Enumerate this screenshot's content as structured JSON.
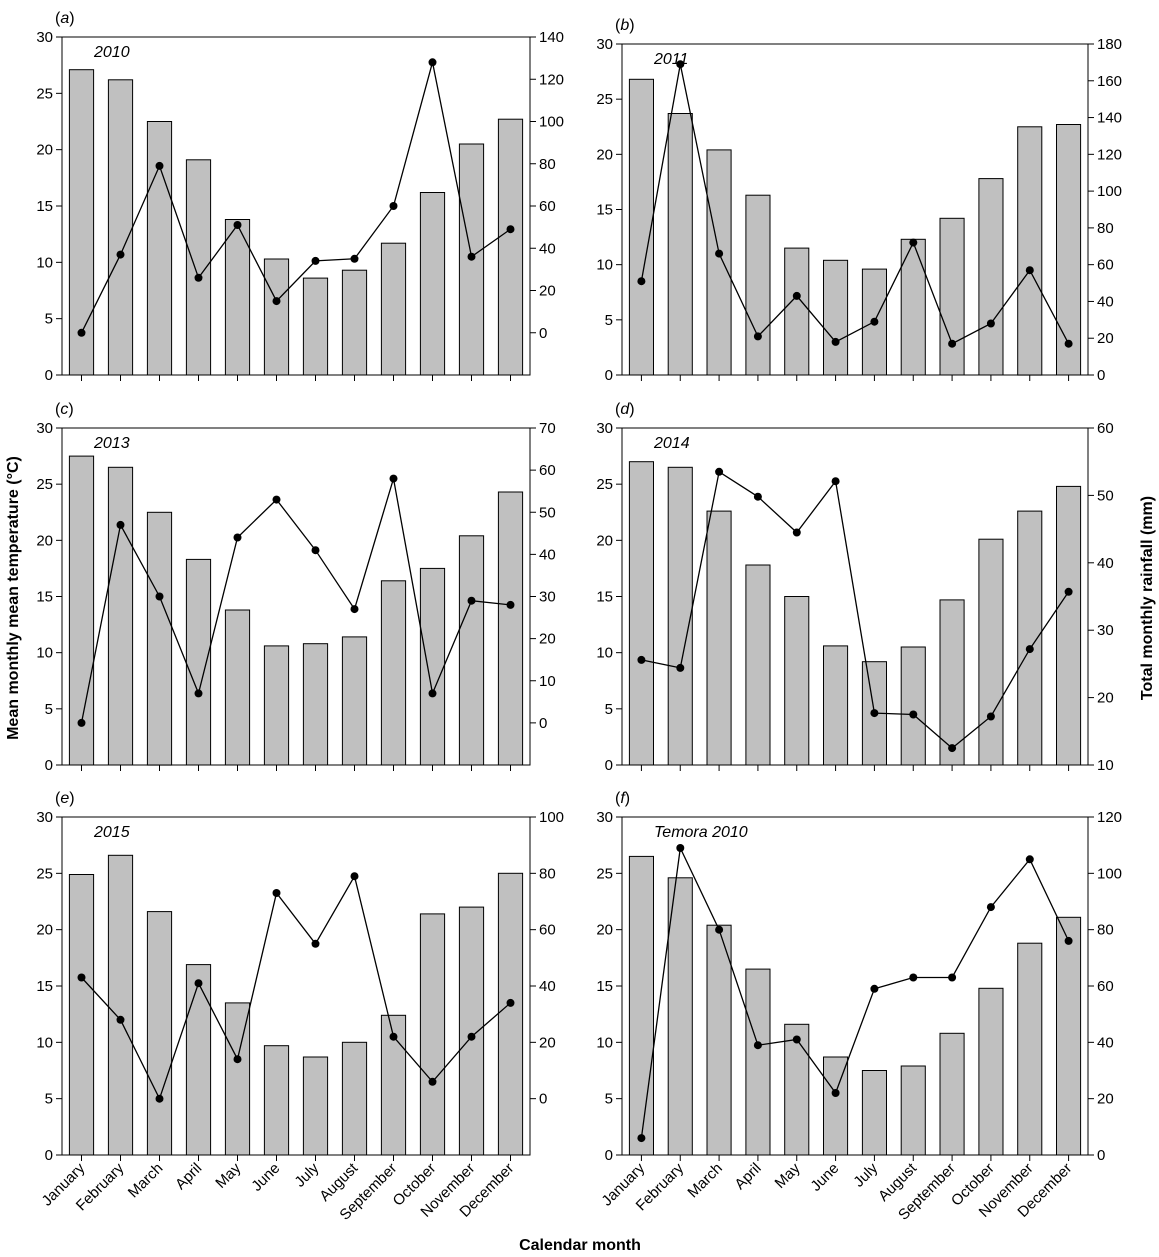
{
  "figure": {
    "ylabel_left": "Mean monthly mean temperature (°C)",
    "ylabel_right": "Total monthly rainfall (mm)",
    "xlabel": "Calendar month",
    "months": [
      "January",
      "February",
      "March",
      "April",
      "May",
      "June",
      "July",
      "August",
      "September",
      "October",
      "November",
      "December"
    ]
  },
  "colors": {
    "bar_fill": "#c0c0c0",
    "bar_stroke": "#000000",
    "line": "#000000",
    "marker": "#000000"
  },
  "chart_data": [
    {
      "type": "bar+line",
      "panel": "(a)",
      "title": "2010",
      "categories": [
        "January",
        "February",
        "March",
        "April",
        "May",
        "June",
        "July",
        "August",
        "September",
        "October",
        "November",
        "December"
      ],
      "series": [
        {
          "axis": "left",
          "type": "bar",
          "values": [
            27.1,
            26.2,
            22.5,
            19.1,
            13.8,
            10.3,
            8.6,
            9.3,
            11.7,
            16.2,
            20.5,
            22.7
          ]
        },
        {
          "axis": "right",
          "type": "line",
          "values": [
            0,
            37,
            79,
            26,
            51,
            15,
            34,
            35,
            60,
            128,
            36,
            49
          ]
        }
      ],
      "ylim_left": [
        0,
        30
      ],
      "yticks_left": [
        0,
        5,
        10,
        15,
        20,
        25,
        30
      ],
      "ylim_right": [
        -20,
        140
      ],
      "yticks_right": [
        0,
        20,
        40,
        60,
        80,
        100,
        120,
        140
      ]
    },
    {
      "type": "bar+line",
      "panel": "(b)",
      "title": "2011",
      "categories": [
        "January",
        "February",
        "March",
        "April",
        "May",
        "June",
        "July",
        "August",
        "September",
        "October",
        "November",
        "December"
      ],
      "series": [
        {
          "axis": "left",
          "type": "bar",
          "values": [
            26.8,
            23.7,
            20.4,
            16.3,
            11.5,
            10.4,
            9.6,
            12.3,
            14.2,
            17.8,
            22.5,
            22.7
          ]
        },
        {
          "axis": "right",
          "type": "line",
          "values": [
            51,
            169,
            66,
            21,
            43,
            18,
            29,
            72,
            17,
            28,
            57,
            17
          ]
        }
      ],
      "ylim_left": [
        0,
        30
      ],
      "yticks_left": [
        0,
        5,
        10,
        15,
        20,
        25,
        30
      ],
      "ylim_right": [
        0,
        180
      ],
      "yticks_right": [
        0,
        20,
        40,
        60,
        80,
        100,
        120,
        140,
        160,
        180
      ]
    },
    {
      "type": "bar+line",
      "panel": "(c)",
      "title": "2013",
      "categories": [
        "January",
        "February",
        "March",
        "April",
        "May",
        "June",
        "July",
        "August",
        "September",
        "October",
        "November",
        "December"
      ],
      "series": [
        {
          "axis": "left",
          "type": "bar",
          "values": [
            27.5,
            26.5,
            22.5,
            18.3,
            13.8,
            10.6,
            10.8,
            11.4,
            16.4,
            17.5,
            20.4,
            24.3
          ]
        },
        {
          "axis": "right",
          "type": "line",
          "values": [
            0,
            47,
            30,
            7,
            44,
            53,
            41,
            27,
            58,
            7,
            29,
            28
          ]
        }
      ],
      "ylim_left": [
        0,
        30
      ],
      "yticks_left": [
        0,
        5,
        10,
        15,
        20,
        25,
        30
      ],
      "ylim_right": [
        -10,
        70
      ],
      "yticks_right": [
        0,
        10,
        20,
        30,
        40,
        50,
        60,
        70
      ]
    },
    {
      "type": "bar+line",
      "panel": "(d)",
      "title": "2014",
      "categories": [
        "January",
        "February",
        "March",
        "April",
        "May",
        "June",
        "July",
        "August",
        "September",
        "October",
        "November",
        "December"
      ],
      "series": [
        {
          "axis": "left",
          "type": "bar",
          "values": [
            27.0,
            26.5,
            22.6,
            17.8,
            15.0,
            10.6,
            9.2,
            10.5,
            14.7,
            20.1,
            22.6,
            24.8
          ]
        },
        {
          "axis": "right",
          "type": "line",
          "values": [
            25.6,
            24.4,
            53.5,
            49.8,
            44.5,
            52.1,
            17.7,
            17.5,
            12.5,
            17.2,
            27.2,
            35.7
          ]
        }
      ],
      "ylim_left": [
        0,
        30
      ],
      "yticks_left": [
        0,
        5,
        10,
        15,
        20,
        25,
        30
      ],
      "ylim_right": [
        10,
        60
      ],
      "yticks_right": [
        10,
        20,
        30,
        40,
        50,
        60
      ]
    },
    {
      "type": "bar+line",
      "panel": "(e)",
      "title": "2015",
      "categories": [
        "January",
        "February",
        "March",
        "April",
        "May",
        "June",
        "July",
        "August",
        "September",
        "October",
        "November",
        "December"
      ],
      "series": [
        {
          "axis": "left",
          "type": "bar",
          "values": [
            24.9,
            26.6,
            21.6,
            16.9,
            13.5,
            9.7,
            8.7,
            10.0,
            12.4,
            21.4,
            22.0,
            25.0
          ]
        },
        {
          "axis": "right",
          "type": "line",
          "values": [
            43,
            28,
            0,
            41,
            14,
            73,
            55,
            79,
            22,
            6,
            22,
            34
          ]
        }
      ],
      "ylim_left": [
        0,
        30
      ],
      "yticks_left": [
        0,
        5,
        10,
        15,
        20,
        25,
        30
      ],
      "ylim_right": [
        -20,
        100
      ],
      "yticks_right": [
        0,
        20,
        40,
        60,
        80,
        100
      ]
    },
    {
      "type": "bar+line",
      "panel": "(f)",
      "title": "Temora 2010",
      "categories": [
        "January",
        "February",
        "March",
        "April",
        "May",
        "June",
        "July",
        "August",
        "September",
        "October",
        "November",
        "December"
      ],
      "series": [
        {
          "axis": "left",
          "type": "bar",
          "values": [
            26.5,
            24.6,
            20.4,
            16.5,
            11.6,
            8.7,
            7.5,
            7.9,
            10.8,
            14.8,
            18.8,
            21.1
          ]
        },
        {
          "axis": "right",
          "type": "line",
          "values": [
            6,
            109,
            80,
            39,
            41,
            22,
            59,
            63,
            63,
            88,
            105,
            76
          ]
        }
      ],
      "ylim_left": [
        0,
        30
      ],
      "yticks_left": [
        0,
        5,
        10,
        15,
        20,
        25,
        30
      ],
      "ylim_right": [
        0,
        120
      ],
      "yticks_right": [
        0,
        20,
        40,
        60,
        80,
        100,
        120
      ]
    }
  ]
}
